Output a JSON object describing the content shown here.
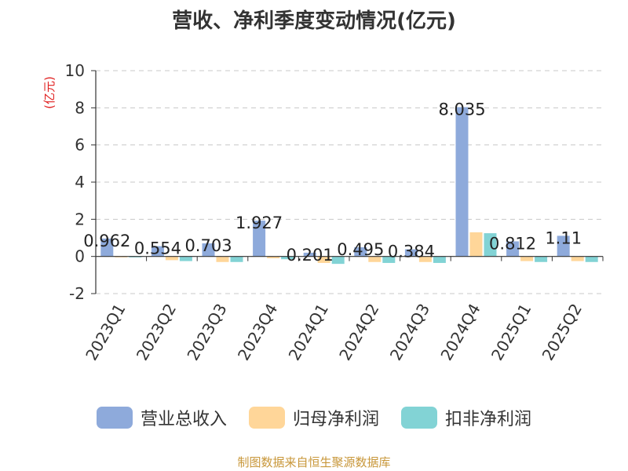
{
  "chart_data": {
    "type": "bar",
    "title": "营收、净利季度变动情况(亿元)",
    "ylabel": "(亿元)",
    "ylim": [
      -2,
      10
    ],
    "yticks": [
      -2,
      0,
      2,
      4,
      6,
      8,
      10
    ],
    "grid": true,
    "legend_position": "bottom",
    "categories": [
      "2023Q1",
      "2023Q2",
      "2023Q3",
      "2023Q4",
      "2024Q1",
      "2024Q2",
      "2024Q3",
      "2024Q4",
      "2025Q1",
      "2025Q2"
    ],
    "series": [
      {
        "name": "营业总收入",
        "color": "#8eaadb",
        "values": [
          0.962,
          0.554,
          0.703,
          1.927,
          0.201,
          0.495,
          0.384,
          8.035,
          0.812,
          1.11
        ],
        "labels": [
          "0.962",
          "0.554",
          "0.703",
          "1.927",
          "0.201",
          "0.495",
          "0.384",
          "8.035",
          "0.812",
          "1.11"
        ]
      },
      {
        "name": "归母净利润",
        "color": "#ffd699",
        "values": [
          -0.05,
          -0.2,
          -0.3,
          -0.1,
          -0.35,
          -0.3,
          -0.3,
          1.3,
          -0.25,
          -0.25
        ]
      },
      {
        "name": "扣非净利润",
        "color": "#82d3d5",
        "values": [
          -0.05,
          -0.25,
          -0.3,
          -0.15,
          -0.4,
          -0.35,
          -0.35,
          1.25,
          -0.3,
          -0.3
        ]
      }
    ]
  },
  "footer": {
    "source": "制图数据来自恒生聚源数据库"
  }
}
